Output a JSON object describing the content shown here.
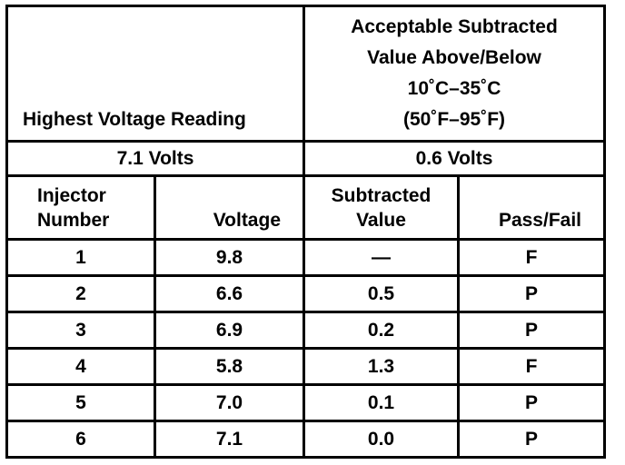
{
  "header": {
    "left": "Highest Voltage Reading",
    "right_lines": [
      "Acceptable Subtracted",
      "Value Above/Below",
      "10˚C–35˚C",
      "(50˚F–95˚F)"
    ]
  },
  "subheader": {
    "left": "7.1 Volts",
    "right": "0.6 Volts"
  },
  "columns": {
    "injector_lines": [
      "Injector",
      "Number"
    ],
    "voltage": "Voltage",
    "subtracted_lines": [
      "Subtracted",
      "Value"
    ],
    "pass_fail": "Pass/Fail"
  },
  "rows": [
    {
      "injector": "1",
      "voltage": "9.8",
      "subtracted": "—",
      "result": "F"
    },
    {
      "injector": "2",
      "voltage": "6.6",
      "subtracted": "0.5",
      "result": "P"
    },
    {
      "injector": "3",
      "voltage": "6.9",
      "subtracted": "0.2",
      "result": "P"
    },
    {
      "injector": "4",
      "voltage": "5.8",
      "subtracted": "1.3",
      "result": "F"
    },
    {
      "injector": "5",
      "voltage": "7.0",
      "subtracted": "0.1",
      "result": "P"
    },
    {
      "injector": "6",
      "voltage": "7.1",
      "subtracted": "0.0",
      "result": "P"
    }
  ]
}
